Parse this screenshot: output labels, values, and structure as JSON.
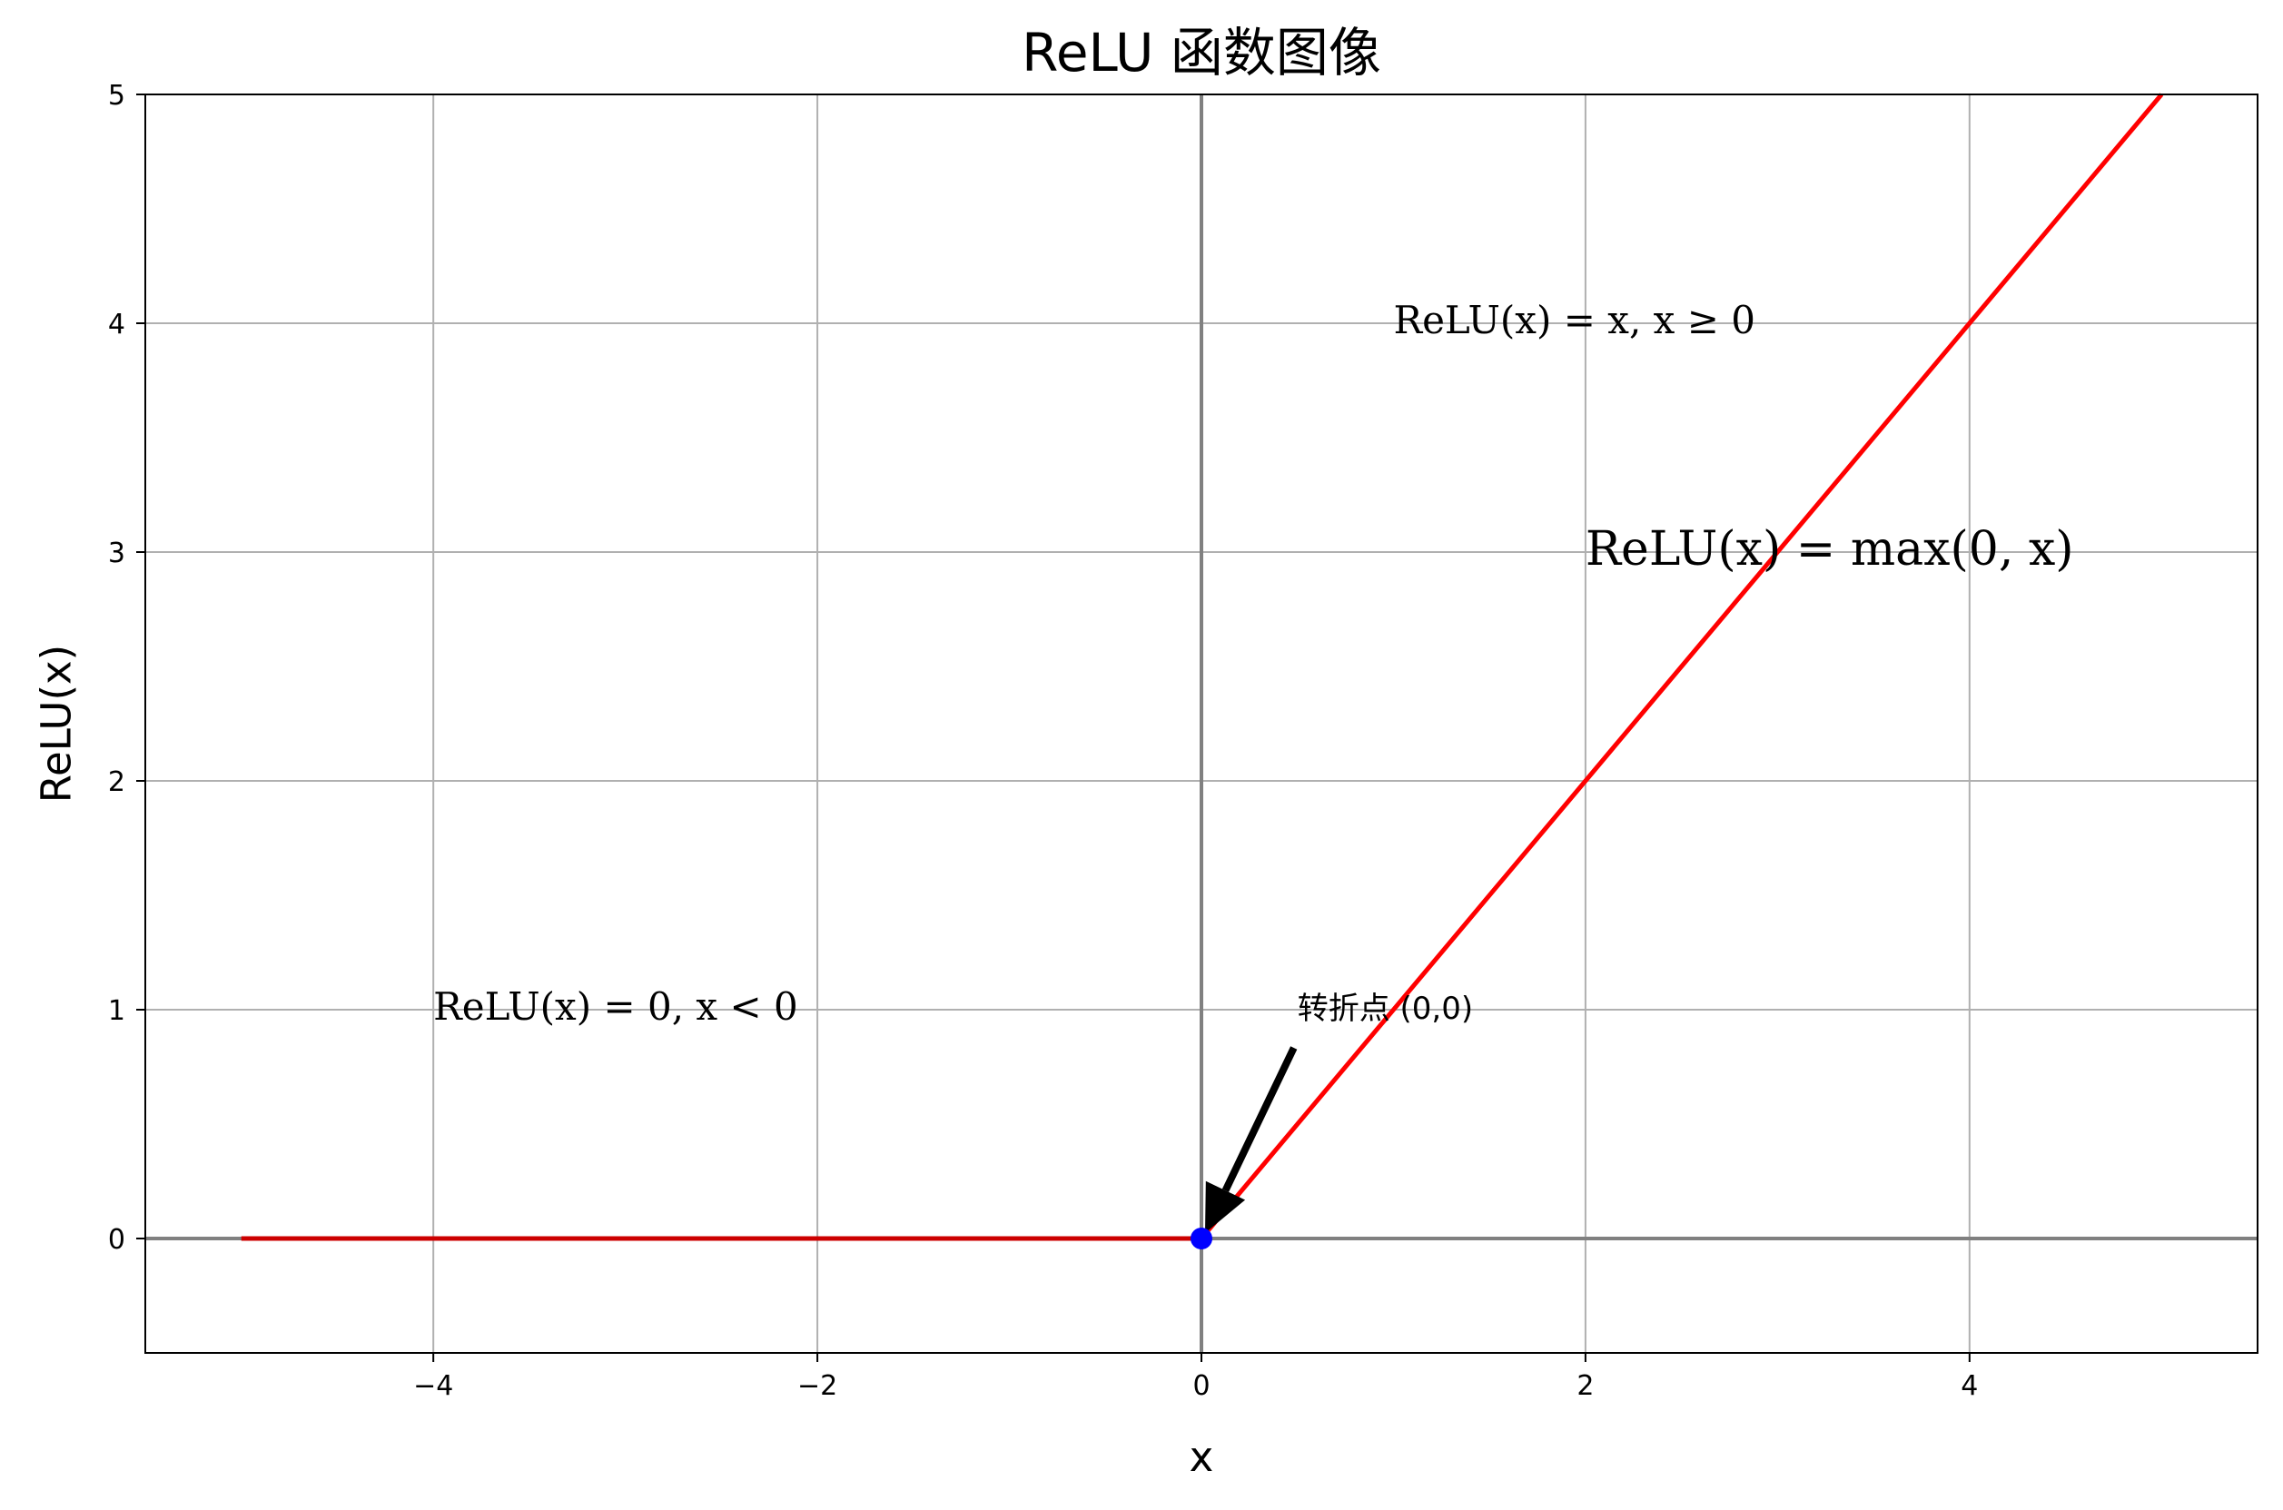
{
  "chart_data": {
    "type": "line",
    "title": "ReLU 函数图像",
    "xlabel": "x",
    "ylabel": "ReLU(x)",
    "xlim": [
      -5.5,
      5.5
    ],
    "ylim": [
      -0.5,
      5
    ],
    "xticks": [
      -4,
      -2,
      0,
      2,
      4
    ],
    "xtick_labels": [
      "−4",
      "−2",
      "0",
      "2",
      "4"
    ],
    "yticks": [
      0,
      1,
      2,
      3,
      4,
      5
    ],
    "ytick_labels": [
      "0",
      "1",
      "2",
      "3",
      "4",
      "5"
    ],
    "grid": true,
    "series": [
      {
        "values": [
          [
            -5,
            0
          ],
          [
            0,
            0
          ]
        ],
        "color": "#cc0000"
      },
      {
        "values": [
          [
            0,
            0
          ],
          [
            5,
            5
          ]
        ],
        "color": "#ff0000"
      }
    ],
    "highlight_point": {
      "x": 0,
      "y": 0,
      "color": "#0000ff"
    },
    "annotations": [
      {
        "text": "ReLU(x) = x, x ≥ 0",
        "x": 1,
        "y": 4
      },
      {
        "text": "ReLU(x) = max(0, x)",
        "x": 2,
        "y": 3
      },
      {
        "text": "ReLU(x) = 0, x < 0",
        "x": -4,
        "y": 1
      },
      {
        "text": "转折点 (0,0)",
        "x": 0.5,
        "y": 1,
        "arrow_to": [
          0,
          0
        ]
      }
    ]
  }
}
